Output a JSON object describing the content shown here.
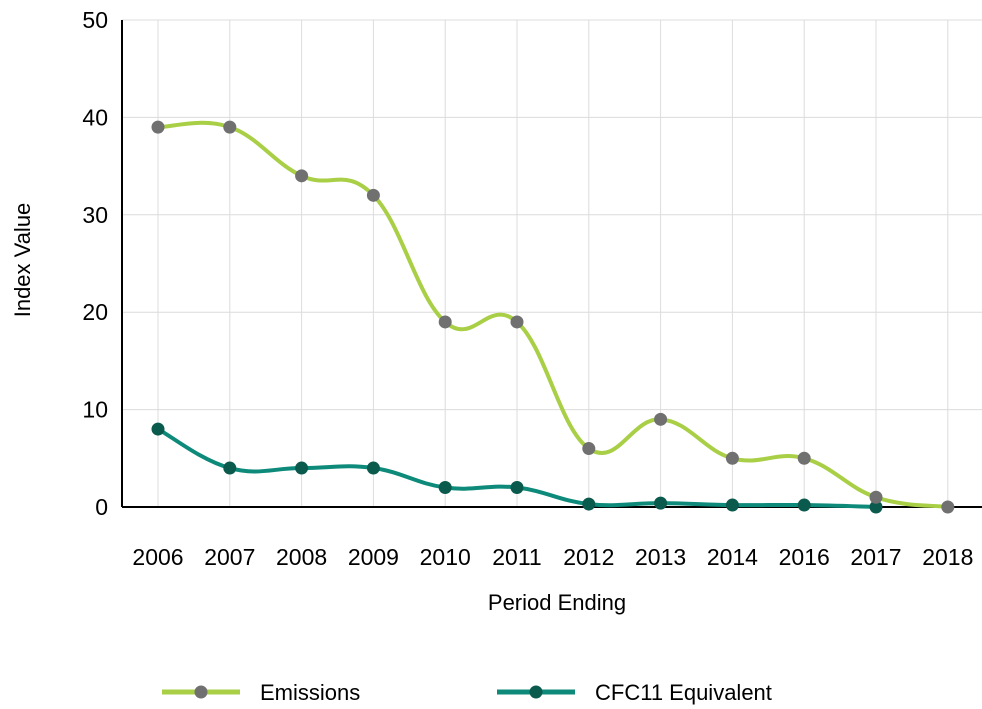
{
  "chart_data": {
    "type": "line",
    "title": "",
    "xlabel": "Period Ending",
    "ylabel": "Index Value",
    "categories": [
      "2006",
      "2007",
      "2008",
      "2009",
      "2010",
      "2011",
      "2012",
      "2013",
      "2014",
      "2016",
      "2017",
      "2018"
    ],
    "ylim": [
      0,
      50
    ],
    "yticks": [
      0,
      10,
      20,
      30,
      40,
      50
    ],
    "grid": true,
    "legend_position": "bottom",
    "series": [
      {
        "name": "Emissions",
        "line_color": "#a8cf45",
        "marker_color": "#707070",
        "values": [
          39,
          39,
          34,
          32,
          19,
          19,
          6,
          9,
          5,
          5,
          1,
          0
        ]
      },
      {
        "name": "CFC11 Equivalent",
        "line_color": "#0e8a7a",
        "marker_color": "#0b5a4e",
        "values": [
          8,
          4,
          4,
          4,
          2,
          2,
          0.3,
          0.4,
          0.2,
          0.2,
          0,
          null
        ]
      }
    ]
  }
}
